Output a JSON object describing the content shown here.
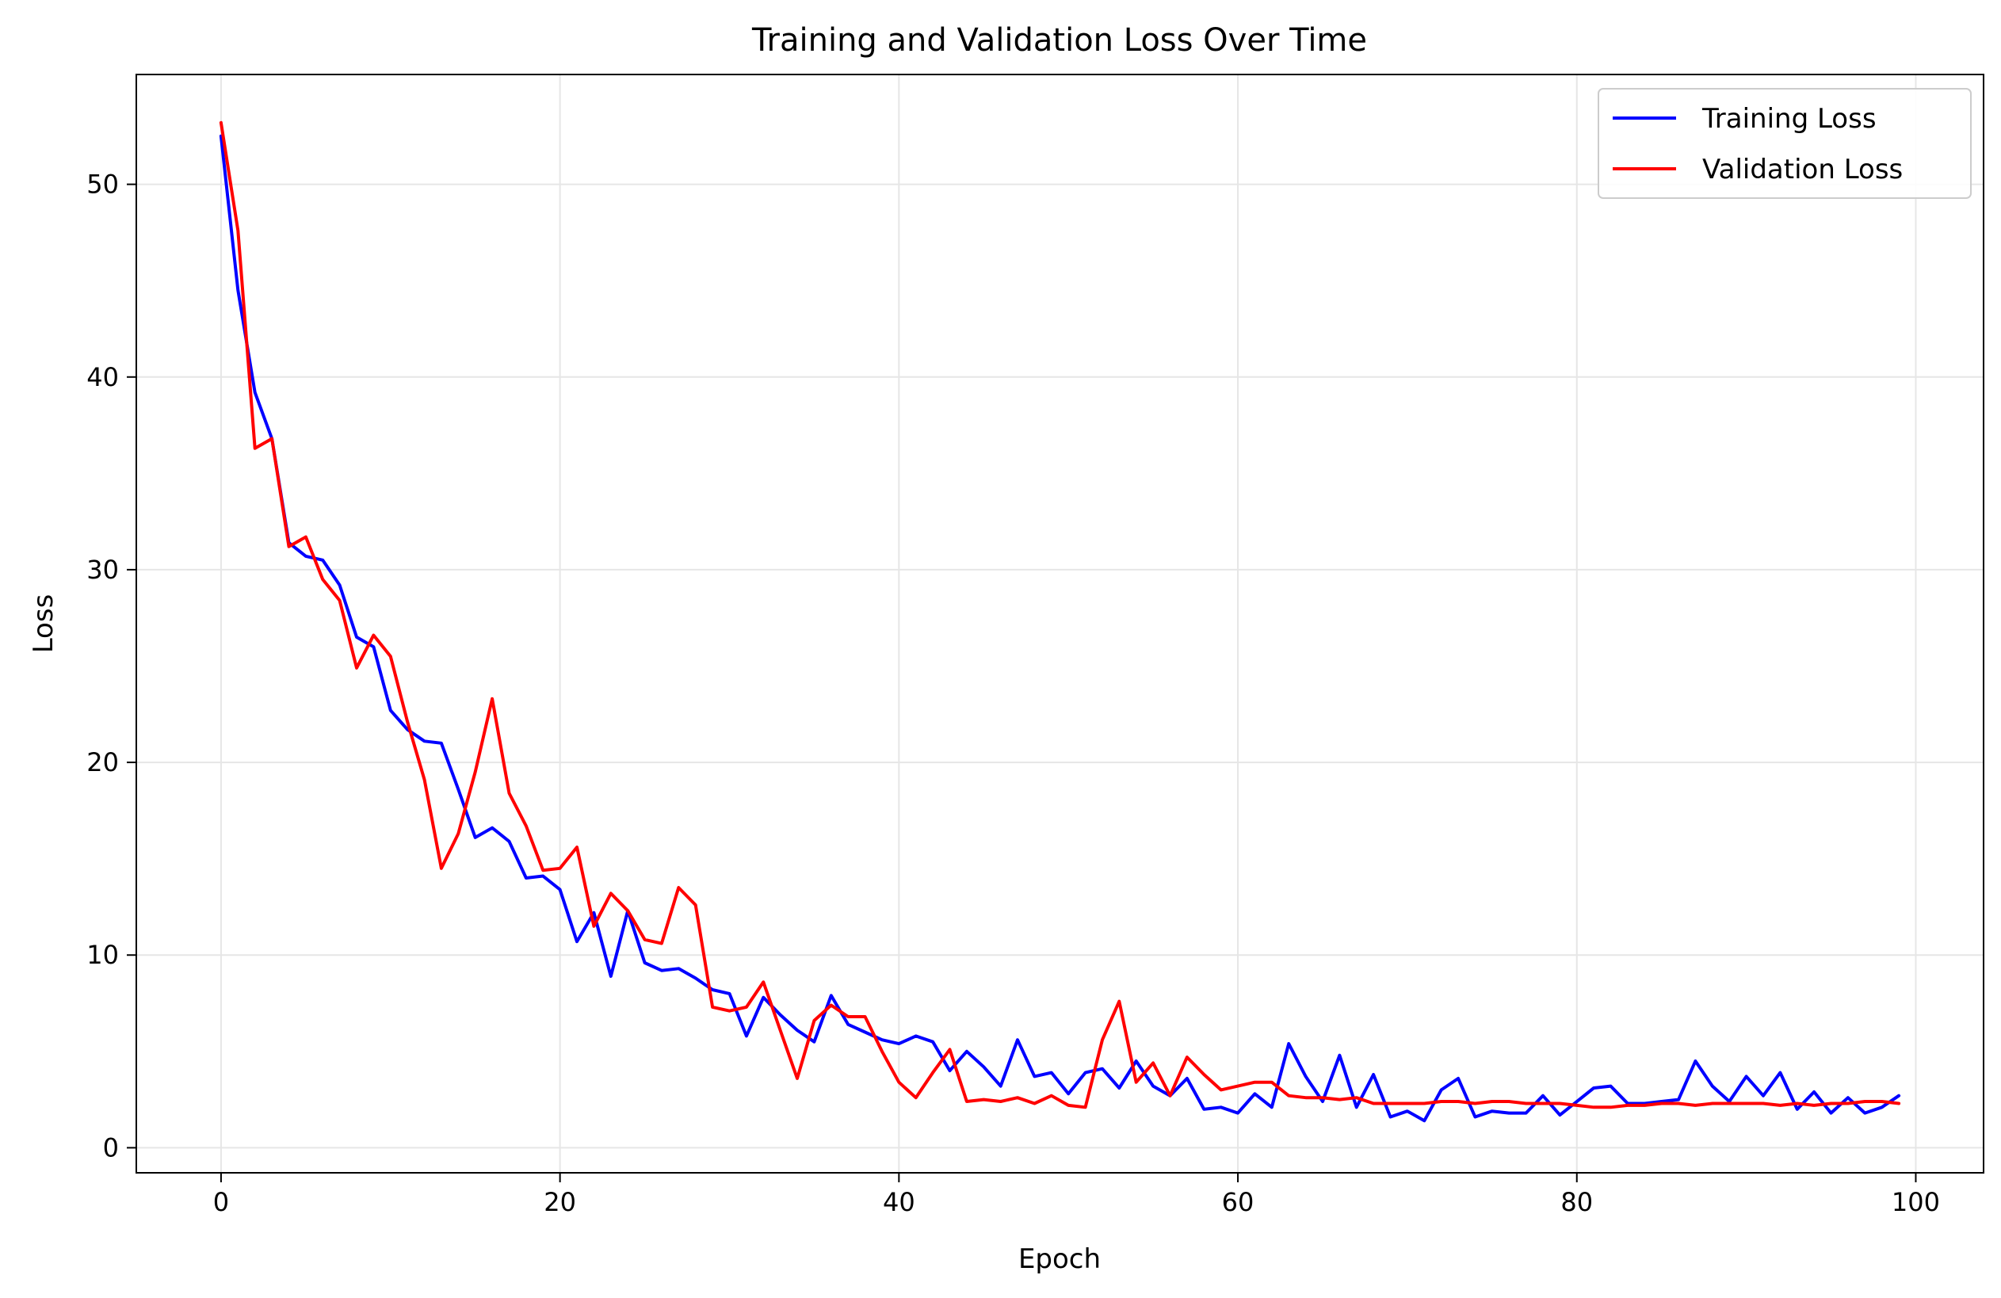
{
  "chart_data": {
    "type": "line",
    "title": "Training and Validation Loss Over Time",
    "xlabel": "Epoch",
    "ylabel": "Loss",
    "xlim": [
      -5,
      104
    ],
    "ylim": [
      -1.3,
      55.7
    ],
    "xticks": [
      0,
      20,
      40,
      60,
      80,
      100
    ],
    "yticks": [
      0,
      10,
      20,
      30,
      40,
      50
    ],
    "grid": true,
    "legend_position": "top-right",
    "series": [
      {
        "name": "Training Loss",
        "color": "#0000ff",
        "values": [
          52.5,
          44.5,
          39.2,
          36.8,
          31.4,
          30.7,
          30.5,
          29.2,
          26.5,
          26.0,
          22.7,
          21.7,
          21.1,
          21.0,
          18.6,
          16.1,
          16.6,
          15.9,
          14.0,
          14.1,
          13.4,
          10.7,
          12.2,
          8.9,
          12.3,
          9.6,
          9.2,
          9.3,
          8.8,
          8.2,
          8.0,
          5.8,
          7.8,
          6.9,
          6.1,
          5.5,
          7.9,
          6.4,
          6.0,
          5.6,
          5.4,
          5.8,
          5.5,
          4.0,
          5.0,
          4.2,
          3.2,
          5.6,
          3.7,
          3.9,
          2.8,
          3.9,
          4.1,
          3.1,
          4.5,
          3.2,
          2.7,
          3.6,
          2.0,
          2.1,
          1.8,
          2.8,
          2.1,
          5.4,
          3.7,
          2.4,
          4.8,
          2.1,
          3.8,
          1.6,
          1.9,
          1.4,
          3.0,
          3.6,
          1.6,
          1.9,
          1.8,
          1.8,
          2.7,
          1.7,
          2.4,
          3.1,
          3.2,
          2.3,
          2.3,
          2.4,
          2.5,
          4.5,
          3.2,
          2.4,
          3.7,
          2.7,
          3.9,
          2.0,
          2.9,
          1.8,
          2.6,
          1.8,
          2.1,
          2.7
        ]
      },
      {
        "name": "Validation Loss",
        "color": "#ff0000",
        "values": [
          53.2,
          47.6,
          36.3,
          36.8,
          31.2,
          31.7,
          29.5,
          28.4,
          24.9,
          26.6,
          25.5,
          22.1,
          19.1,
          14.5,
          16.3,
          19.5,
          23.3,
          18.4,
          16.7,
          14.4,
          14.5,
          15.6,
          11.5,
          13.2,
          12.3,
          10.8,
          10.6,
          13.5,
          12.6,
          7.3,
          7.1,
          7.3,
          8.6,
          6.1,
          3.6,
          6.6,
          7.4,
          6.8,
          6.8,
          5.0,
          3.4,
          2.6,
          3.9,
          5.1,
          2.4,
          2.5,
          2.4,
          2.6,
          2.3,
          2.7,
          2.2,
          2.1,
          5.6,
          7.6,
          3.4,
          4.4,
          2.7,
          4.7,
          3.8,
          3.0,
          3.2,
          3.4,
          3.4,
          2.7,
          2.6,
          2.6,
          2.5,
          2.6,
          2.3,
          2.3,
          2.3,
          2.3,
          2.4,
          2.4,
          2.3,
          2.4,
          2.4,
          2.3,
          2.3,
          2.3,
          2.2,
          2.1,
          2.1,
          2.2,
          2.2,
          2.3,
          2.3,
          2.2,
          2.3,
          2.3,
          2.3,
          2.3,
          2.2,
          2.3,
          2.2,
          2.3,
          2.3,
          2.4,
          2.4,
          2.3
        ]
      }
    ]
  }
}
